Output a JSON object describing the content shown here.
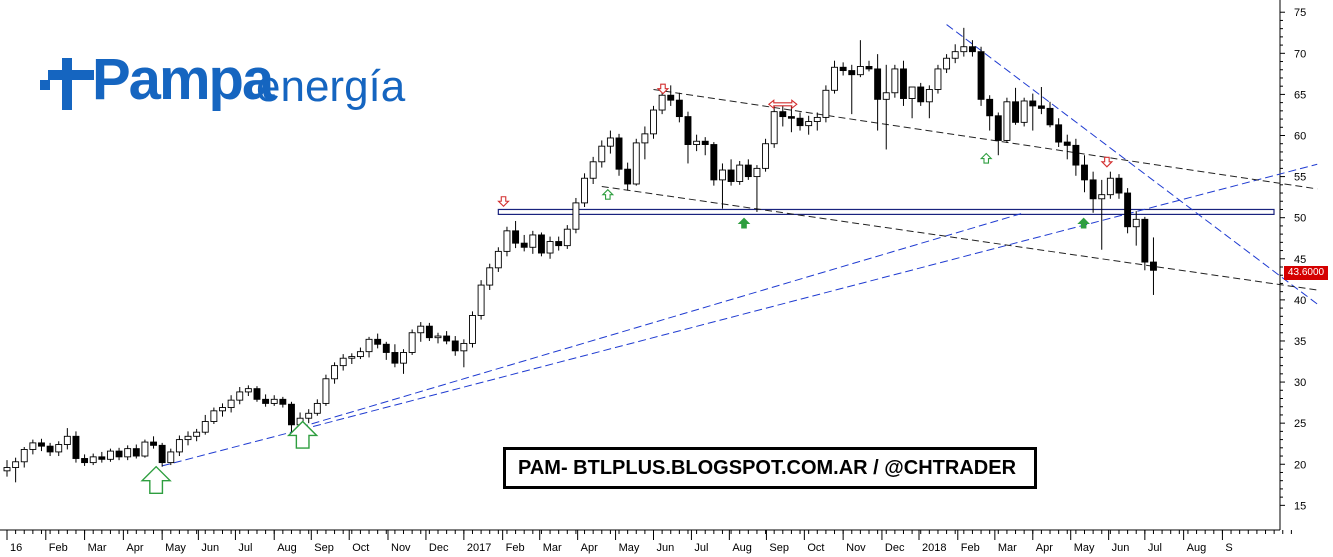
{
  "logo": {
    "brand": "Pampa",
    "brand2": "energía"
  },
  "banner": {
    "text": "PAM- BTLPLUS.BLOGSPOT.COM.AR / @CHTRADER"
  },
  "last_price": "43.6000",
  "colors": {
    "up": "#ffffff",
    "down": "#000000",
    "trend_blue": "#1f3bd1",
    "arrow_green": "#2e9e3f",
    "arrow_red": "#d32f2f",
    "price_tag": "#d50000"
  },
  "chart_data": {
    "type": "candlestick",
    "title": "",
    "ylim": [
      12,
      76
    ],
    "y_ticks": [
      15,
      20,
      25,
      30,
      35,
      40,
      45,
      50,
      55,
      60,
      65,
      70,
      75
    ],
    "x_tick_labels": [
      "16",
      "Feb",
      "Mar",
      "Apr",
      "May",
      "Jun",
      "Jul",
      "Aug",
      "Sep",
      "Oct",
      "Nov",
      "Dec",
      "2017",
      "Feb",
      "Mar",
      "Apr",
      "May",
      "Jun",
      "Jul",
      "Aug",
      "Sep",
      "Oct",
      "Nov",
      "Dec",
      "2018",
      "Feb",
      "Mar",
      "Apr",
      "May",
      "Jun",
      "Jul",
      "Aug",
      "S"
    ],
    "x_tick_slots": [
      0,
      4.5,
      9,
      13.5,
      18,
      22.2,
      26.5,
      31,
      35.3,
      39.7,
      44.2,
      48.6,
      53,
      57.5,
      61.8,
      66.2,
      70.6,
      75,
      79.4,
      83.8,
      88.1,
      92.5,
      97,
      101.5,
      105.8,
      110.3,
      114.6,
      119,
      123.4,
      127.8,
      132,
      136.5,
      141
    ],
    "candles": [
      {
        "o": 19.2,
        "h": 20.5,
        "l": 18.5,
        "c": 19.6
      },
      {
        "o": 19.6,
        "h": 20.8,
        "l": 17.8,
        "c": 20.3
      },
      {
        "o": 20.3,
        "h": 22.1,
        "l": 19.6,
        "c": 21.8
      },
      {
        "o": 21.8,
        "h": 23.0,
        "l": 21.2,
        "c": 22.6
      },
      {
        "o": 22.6,
        "h": 23.1,
        "l": 21.6,
        "c": 22.2
      },
      {
        "o": 22.2,
        "h": 22.6,
        "l": 21.0,
        "c": 21.5
      },
      {
        "o": 21.5,
        "h": 22.8,
        "l": 21.0,
        "c": 22.4
      },
      {
        "o": 22.4,
        "h": 24.4,
        "l": 21.8,
        "c": 23.4
      },
      {
        "o": 23.4,
        "h": 24.0,
        "l": 20.2,
        "c": 20.7
      },
      {
        "o": 20.7,
        "h": 21.2,
        "l": 19.8,
        "c": 20.2
      },
      {
        "o": 20.2,
        "h": 21.3,
        "l": 19.9,
        "c": 20.9
      },
      {
        "o": 20.9,
        "h": 21.5,
        "l": 20.2,
        "c": 20.6
      },
      {
        "o": 20.6,
        "h": 21.9,
        "l": 20.3,
        "c": 21.6
      },
      {
        "o": 21.6,
        "h": 22.0,
        "l": 20.5,
        "c": 20.9
      },
      {
        "o": 20.9,
        "h": 22.3,
        "l": 20.5,
        "c": 21.9
      },
      {
        "o": 21.9,
        "h": 22.4,
        "l": 20.7,
        "c": 21.0
      },
      {
        "o": 21.0,
        "h": 23.0,
        "l": 20.8,
        "c": 22.7
      },
      {
        "o": 22.7,
        "h": 23.4,
        "l": 21.9,
        "c": 22.3
      },
      {
        "o": 22.3,
        "h": 22.6,
        "l": 19.7,
        "c": 20.2
      },
      {
        "o": 20.2,
        "h": 21.9,
        "l": 19.9,
        "c": 21.5
      },
      {
        "o": 21.5,
        "h": 23.5,
        "l": 21.0,
        "c": 23.0
      },
      {
        "o": 23.0,
        "h": 24.0,
        "l": 22.3,
        "c": 23.4
      },
      {
        "o": 23.4,
        "h": 24.3,
        "l": 22.8,
        "c": 23.9
      },
      {
        "o": 23.9,
        "h": 26.0,
        "l": 23.6,
        "c": 25.2
      },
      {
        "o": 25.2,
        "h": 26.9,
        "l": 24.9,
        "c": 26.5
      },
      {
        "o": 26.5,
        "h": 27.4,
        "l": 25.8,
        "c": 26.9
      },
      {
        "o": 26.9,
        "h": 28.4,
        "l": 26.3,
        "c": 27.8
      },
      {
        "o": 27.8,
        "h": 29.4,
        "l": 27.3,
        "c": 28.8
      },
      {
        "o": 28.8,
        "h": 29.6,
        "l": 28.3,
        "c": 29.2
      },
      {
        "o": 29.2,
        "h": 29.5,
        "l": 27.6,
        "c": 27.9
      },
      {
        "o": 27.9,
        "h": 28.5,
        "l": 27.0,
        "c": 27.4
      },
      {
        "o": 27.4,
        "h": 28.4,
        "l": 27.1,
        "c": 27.9
      },
      {
        "o": 27.9,
        "h": 28.2,
        "l": 26.9,
        "c": 27.3
      },
      {
        "o": 27.3,
        "h": 27.6,
        "l": 23.9,
        "c": 24.8
      },
      {
        "o": 24.8,
        "h": 26.3,
        "l": 24.5,
        "c": 25.6
      },
      {
        "o": 25.6,
        "h": 26.7,
        "l": 25.0,
        "c": 26.2
      },
      {
        "o": 26.2,
        "h": 27.9,
        "l": 25.9,
        "c": 27.4
      },
      {
        "o": 27.4,
        "h": 30.9,
        "l": 27.1,
        "c": 30.4
      },
      {
        "o": 30.4,
        "h": 32.4,
        "l": 29.8,
        "c": 32.0
      },
      {
        "o": 32.0,
        "h": 33.4,
        "l": 31.4,
        "c": 32.9
      },
      {
        "o": 32.9,
        "h": 33.5,
        "l": 32.2,
        "c": 33.1
      },
      {
        "o": 33.1,
        "h": 34.2,
        "l": 32.8,
        "c": 33.7
      },
      {
        "o": 33.7,
        "h": 35.5,
        "l": 33.0,
        "c": 35.2
      },
      {
        "o": 35.2,
        "h": 35.9,
        "l": 34.1,
        "c": 34.6
      },
      {
        "o": 34.6,
        "h": 34.9,
        "l": 32.7,
        "c": 33.6
      },
      {
        "o": 33.6,
        "h": 34.6,
        "l": 31.8,
        "c": 32.3
      },
      {
        "o": 32.3,
        "h": 34.0,
        "l": 31.0,
        "c": 33.6
      },
      {
        "o": 33.6,
        "h": 36.4,
        "l": 33.3,
        "c": 36.0
      },
      {
        "o": 36.0,
        "h": 37.3,
        "l": 34.9,
        "c": 36.8
      },
      {
        "o": 36.8,
        "h": 37.2,
        "l": 35.0,
        "c": 35.4
      },
      {
        "o": 35.4,
        "h": 36.0,
        "l": 34.7,
        "c": 35.6
      },
      {
        "o": 35.6,
        "h": 36.2,
        "l": 34.6,
        "c": 35.0
      },
      {
        "o": 35.0,
        "h": 35.6,
        "l": 33.2,
        "c": 33.8
      },
      {
        "o": 33.8,
        "h": 35.2,
        "l": 31.8,
        "c": 34.7
      },
      {
        "o": 34.7,
        "h": 38.6,
        "l": 34.2,
        "c": 38.1
      },
      {
        "o": 38.1,
        "h": 42.4,
        "l": 37.6,
        "c": 41.8
      },
      {
        "o": 41.8,
        "h": 44.4,
        "l": 41.2,
        "c": 43.9
      },
      {
        "o": 43.9,
        "h": 46.4,
        "l": 43.4,
        "c": 45.9
      },
      {
        "o": 45.9,
        "h": 48.9,
        "l": 45.3,
        "c": 48.4
      },
      {
        "o": 48.4,
        "h": 49.6,
        "l": 46.3,
        "c": 46.9
      },
      {
        "o": 46.9,
        "h": 47.9,
        "l": 45.9,
        "c": 46.4
      },
      {
        "o": 46.4,
        "h": 48.4,
        "l": 45.6,
        "c": 47.9
      },
      {
        "o": 47.9,
        "h": 48.2,
        "l": 45.3,
        "c": 45.7
      },
      {
        "o": 45.7,
        "h": 47.7,
        "l": 45.0,
        "c": 47.1
      },
      {
        "o": 47.1,
        "h": 47.7,
        "l": 46.0,
        "c": 46.6
      },
      {
        "o": 46.6,
        "h": 49.1,
        "l": 46.2,
        "c": 48.6
      },
      {
        "o": 48.6,
        "h": 52.4,
        "l": 48.1,
        "c": 51.8
      },
      {
        "o": 51.8,
        "h": 55.4,
        "l": 51.3,
        "c": 54.8
      },
      {
        "o": 54.8,
        "h": 57.4,
        "l": 54.1,
        "c": 56.8
      },
      {
        "o": 56.8,
        "h": 59.4,
        "l": 56.1,
        "c": 58.7
      },
      {
        "o": 58.7,
        "h": 60.6,
        "l": 57.8,
        "c": 59.7
      },
      {
        "o": 59.7,
        "h": 60.2,
        "l": 55.1,
        "c": 55.9
      },
      {
        "o": 55.9,
        "h": 56.7,
        "l": 53.3,
        "c": 54.1
      },
      {
        "o": 54.1,
        "h": 59.6,
        "l": 53.9,
        "c": 59.1
      },
      {
        "o": 59.1,
        "h": 61.1,
        "l": 57.1,
        "c": 60.2
      },
      {
        "o": 60.2,
        "h": 63.6,
        "l": 59.6,
        "c": 63.1
      },
      {
        "o": 63.1,
        "h": 65.6,
        "l": 62.6,
        "c": 64.9
      },
      {
        "o": 64.9,
        "h": 66.1,
        "l": 63.6,
        "c": 64.3
      },
      {
        "o": 64.3,
        "h": 65.2,
        "l": 61.6,
        "c": 62.3
      },
      {
        "o": 62.3,
        "h": 62.9,
        "l": 56.6,
        "c": 58.9
      },
      {
        "o": 58.9,
        "h": 60.1,
        "l": 58.1,
        "c": 59.3
      },
      {
        "o": 59.3,
        "h": 59.8,
        "l": 57.6,
        "c": 58.9
      },
      {
        "o": 58.9,
        "h": 59.2,
        "l": 53.9,
        "c": 54.6
      },
      {
        "o": 54.6,
        "h": 56.6,
        "l": 51.1,
        "c": 55.8
      },
      {
        "o": 55.8,
        "h": 57.1,
        "l": 53.9,
        "c": 54.4
      },
      {
        "o": 54.4,
        "h": 56.9,
        "l": 54.0,
        "c": 56.4
      },
      {
        "o": 56.4,
        "h": 57.1,
        "l": 54.6,
        "c": 55.0
      },
      {
        "o": 55.0,
        "h": 56.4,
        "l": 50.7,
        "c": 56.0
      },
      {
        "o": 56.0,
        "h": 59.6,
        "l": 55.6,
        "c": 59.0
      },
      {
        "o": 59.0,
        "h": 63.6,
        "l": 58.5,
        "c": 62.9
      },
      {
        "o": 62.9,
        "h": 63.8,
        "l": 61.1,
        "c": 62.3
      },
      {
        "o": 62.3,
        "h": 63.9,
        "l": 60.4,
        "c": 62.1
      },
      {
        "o": 62.1,
        "h": 62.8,
        "l": 60.6,
        "c": 61.2
      },
      {
        "o": 61.2,
        "h": 62.4,
        "l": 60.1,
        "c": 61.7
      },
      {
        "o": 61.7,
        "h": 62.8,
        "l": 60.6,
        "c": 62.2
      },
      {
        "o": 62.2,
        "h": 66.1,
        "l": 61.6,
        "c": 65.5
      },
      {
        "o": 65.5,
        "h": 69.1,
        "l": 65.1,
        "c": 68.3
      },
      {
        "o": 68.3,
        "h": 68.9,
        "l": 67.3,
        "c": 67.9
      },
      {
        "o": 67.9,
        "h": 68.6,
        "l": 62.6,
        "c": 67.4
      },
      {
        "o": 67.4,
        "h": 71.6,
        "l": 67.1,
        "c": 68.4
      },
      {
        "o": 68.4,
        "h": 69.1,
        "l": 67.8,
        "c": 68.1
      },
      {
        "o": 68.1,
        "h": 69.9,
        "l": 60.6,
        "c": 64.4
      },
      {
        "o": 64.4,
        "h": 68.6,
        "l": 58.3,
        "c": 65.2
      },
      {
        "o": 65.2,
        "h": 68.6,
        "l": 64.6,
        "c": 68.1
      },
      {
        "o": 68.1,
        "h": 69.1,
        "l": 63.6,
        "c": 64.5
      },
      {
        "o": 64.5,
        "h": 65.6,
        "l": 62.1,
        "c": 65.9
      },
      {
        "o": 65.9,
        "h": 66.4,
        "l": 63.6,
        "c": 64.1
      },
      {
        "o": 64.1,
        "h": 66.1,
        "l": 62.1,
        "c": 65.6
      },
      {
        "o": 65.6,
        "h": 68.6,
        "l": 65.1,
        "c": 68.1
      },
      {
        "o": 68.1,
        "h": 69.9,
        "l": 67.6,
        "c": 69.4
      },
      {
        "o": 69.4,
        "h": 71.1,
        "l": 68.8,
        "c": 70.2
      },
      {
        "o": 70.2,
        "h": 73.1,
        "l": 69.6,
        "c": 70.8
      },
      {
        "o": 70.8,
        "h": 71.6,
        "l": 69.6,
        "c": 70.2
      },
      {
        "o": 70.2,
        "h": 70.8,
        "l": 63.6,
        "c": 64.4
      },
      {
        "o": 64.4,
        "h": 64.9,
        "l": 60.6,
        "c": 62.4
      },
      {
        "o": 62.4,
        "h": 62.8,
        "l": 57.6,
        "c": 59.4
      },
      {
        "o": 59.4,
        "h": 64.6,
        "l": 59.1,
        "c": 64.1
      },
      {
        "o": 64.1,
        "h": 65.8,
        "l": 61.3,
        "c": 61.6
      },
      {
        "o": 61.6,
        "h": 64.6,
        "l": 61.1,
        "c": 64.2
      },
      {
        "o": 64.2,
        "h": 65.1,
        "l": 60.6,
        "c": 63.6
      },
      {
        "o": 63.6,
        "h": 65.9,
        "l": 62.6,
        "c": 63.3
      },
      {
        "o": 63.3,
        "h": 64.1,
        "l": 61.0,
        "c": 61.3
      },
      {
        "o": 61.3,
        "h": 62.1,
        "l": 58.6,
        "c": 59.2
      },
      {
        "o": 59.2,
        "h": 60.1,
        "l": 57.1,
        "c": 58.8
      },
      {
        "o": 58.8,
        "h": 59.6,
        "l": 55.1,
        "c": 56.4
      },
      {
        "o": 56.4,
        "h": 57.6,
        "l": 53.1,
        "c": 54.6
      },
      {
        "o": 54.6,
        "h": 55.6,
        "l": 50.6,
        "c": 52.3
      },
      {
        "o": 52.3,
        "h": 54.6,
        "l": 46.1,
        "c": 52.8
      },
      {
        "o": 52.8,
        "h": 55.6,
        "l": 52.3,
        "c": 54.8
      },
      {
        "o": 54.8,
        "h": 55.3,
        "l": 52.3,
        "c": 53.0
      },
      {
        "o": 53.0,
        "h": 53.6,
        "l": 48.1,
        "c": 48.9
      },
      {
        "o": 48.9,
        "h": 50.8,
        "l": 46.6,
        "c": 49.8
      },
      {
        "o": 49.8,
        "h": 50.1,
        "l": 43.6,
        "c": 44.6
      },
      {
        "o": 44.6,
        "h": 47.6,
        "l": 40.6,
        "c": 43.6
      }
    ],
    "trendlines": [
      {
        "style": "dash-blue",
        "from": {
          "slot": 18,
          "y": 19.8
        },
        "to": {
          "slot": 152,
          "y": 56.5
        }
      },
      {
        "style": "dash-blue",
        "from": {
          "slot": 34,
          "y": 24.5
        },
        "to": {
          "slot": 118,
          "y": 50.6
        }
      },
      {
        "style": "dash-blue",
        "from": {
          "slot": 109,
          "y": 73.5
        },
        "to": {
          "slot": 152,
          "y": 39.5
        }
      },
      {
        "style": "dash-black",
        "from": {
          "slot": 75,
          "y": 65.6
        },
        "to": {
          "slot": 152,
          "y": 53.5
        }
      },
      {
        "style": "dash-black",
        "from": {
          "slot": 69,
          "y": 53.8
        },
        "to": {
          "slot": 152,
          "y": 41.2
        }
      }
    ],
    "support_band": {
      "y_low": 50.4,
      "y_high": 51.0,
      "from_slot": 57
    },
    "arrows": [
      {
        "type": "up-hollow-green",
        "slot": 17.3,
        "y": 18.0,
        "size": "large"
      },
      {
        "type": "up-hollow-green",
        "slot": 34.3,
        "y": 23.5,
        "size": "large"
      },
      {
        "type": "up-hollow-green",
        "slot": 69.7,
        "y": 52.8,
        "size": "small"
      },
      {
        "type": "up-solid-green",
        "slot": 85.5,
        "y": 49.3,
        "size": "small"
      },
      {
        "type": "up-hollow-green",
        "slot": 113.6,
        "y": 57.2,
        "size": "small"
      },
      {
        "type": "up-solid-green",
        "slot": 124.9,
        "y": 49.3,
        "size": "small"
      },
      {
        "type": "down-hollow-red",
        "slot": 57.6,
        "y": 52.0,
        "size": "small"
      },
      {
        "type": "down-hollow-red",
        "slot": 76.1,
        "y": 65.7,
        "size": "small"
      },
      {
        "type": "left-right-red",
        "slot": 90.0,
        "y": 63.8,
        "size": "small"
      },
      {
        "type": "down-hollow-red",
        "slot": 127.6,
        "y": 56.8,
        "size": "small"
      }
    ]
  }
}
